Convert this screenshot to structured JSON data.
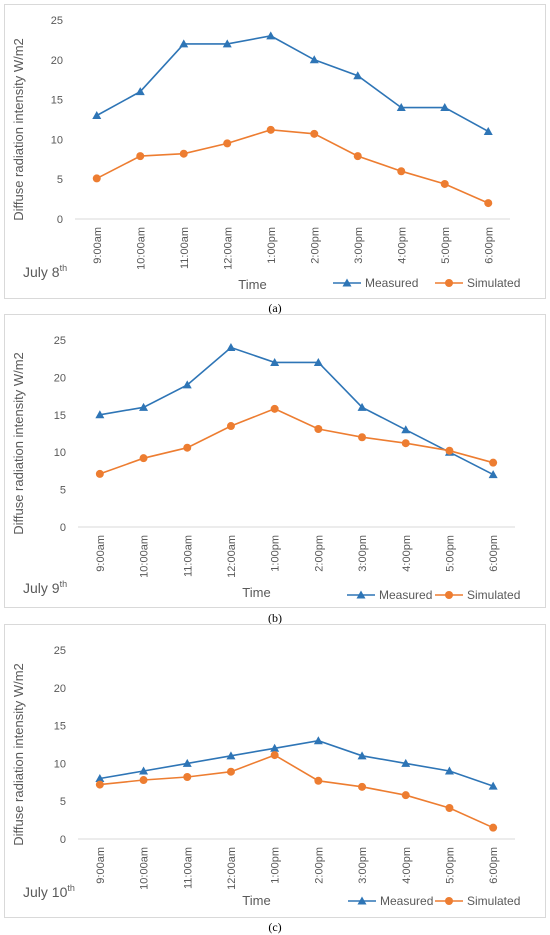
{
  "captions": [
    "(a)",
    "(b)",
    "(c)"
  ],
  "colors": {
    "measured": "#2e75b6",
    "simulated": "#ed7d31",
    "axis_text": "#595959",
    "grid": "#d9d9d9"
  },
  "chart_data": [
    {
      "type": "line",
      "date_label": "July 8",
      "date_suffix": "th",
      "xlabel": "Time",
      "ylabel": "Diffuse radiation intensity W/m2",
      "ylim": [
        0,
        25
      ],
      "yticks": [
        0,
        5,
        10,
        15,
        20,
        25
      ],
      "grid": false,
      "legend": "bottom-right",
      "categories": [
        "9:00am",
        "10:00am",
        "11:00am",
        "12:00am",
        "1:00pm",
        "2:00pm",
        "3:00pm",
        "4:00pm",
        "5:00pm",
        "6:00pm"
      ],
      "series": [
        {
          "name": "Measured",
          "marker": "triangle",
          "values": [
            13,
            16,
            22,
            22,
            23,
            20,
            18,
            14,
            14,
            11
          ]
        },
        {
          "name": "Simulated",
          "marker": "circle",
          "values": [
            5.1,
            7.9,
            8.2,
            9.5,
            11.2,
            10.7,
            7.9,
            6,
            4.4,
            2
          ]
        }
      ]
    },
    {
      "type": "line",
      "date_label": "July 9",
      "date_suffix": "th",
      "xlabel": "Time",
      "ylabel": "Diffuse radiation intensity W/m2",
      "ylim": [
        0,
        25
      ],
      "yticks": [
        0,
        5,
        10,
        15,
        20,
        25
      ],
      "grid": false,
      "legend": "bottom-right",
      "categories": [
        "9:00am",
        "10:00am",
        "11:00am",
        "12:00am",
        "1:00pm",
        "2:00pm",
        "3:00pm",
        "4:00pm",
        "5:00pm",
        "6:00pm"
      ],
      "series": [
        {
          "name": "Measured",
          "marker": "triangle",
          "values": [
            15,
            16,
            19,
            24,
            22,
            22,
            16,
            13,
            10,
            7
          ]
        },
        {
          "name": "Simulated",
          "marker": "circle",
          "values": [
            7.1,
            9.2,
            10.6,
            13.5,
            15.8,
            13.1,
            12,
            11.2,
            10.2,
            8.6
          ]
        }
      ]
    },
    {
      "type": "line",
      "date_label": "July 10",
      "date_suffix": "th",
      "xlabel": "Time",
      "ylabel": "Diffuse radiation intensity W/m2",
      "ylim": [
        0,
        25
      ],
      "yticks": [
        0,
        5,
        10,
        15,
        20,
        25
      ],
      "grid": false,
      "legend": "bottom-right",
      "categories": [
        "9:00am",
        "10:00am",
        "11:00am",
        "12:00am",
        "1:00pm",
        "2:00pm",
        "3:00pm",
        "4:00pm",
        "5:00pm",
        "6:00pm"
      ],
      "series": [
        {
          "name": "Measured",
          "marker": "triangle",
          "values": [
            8,
            9,
            10,
            11,
            12,
            13,
            11,
            10,
            9,
            7
          ]
        },
        {
          "name": "Simulated",
          "marker": "circle",
          "values": [
            7.2,
            7.8,
            8.2,
            8.9,
            11.1,
            7.7,
            6.9,
            5.8,
            4.1,
            1.5
          ]
        }
      ]
    }
  ]
}
